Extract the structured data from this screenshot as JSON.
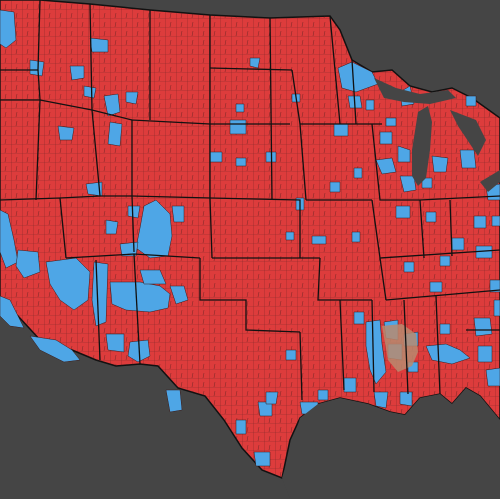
{
  "map": {
    "type": "us-county-choropleth",
    "background_color": "#454545",
    "colors": {
      "republican_red": "#dd3c3c",
      "democrat_blue": "#4ea6e6",
      "county_border": "#3a1a1a",
      "state_border": "#111111",
      "water": "#454545"
    }
  }
}
